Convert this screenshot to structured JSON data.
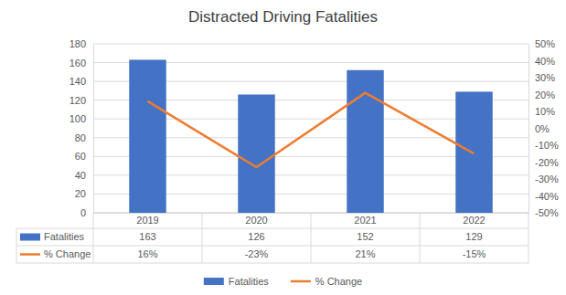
{
  "chart_data": {
    "type": "bar",
    "title": "Distracted Driving Fatalities",
    "categories": [
      "2019",
      "2020",
      "2021",
      "2022"
    ],
    "series": [
      {
        "name": "Fatalities",
        "type": "bar",
        "color": "#4472c4",
        "values": [
          163,
          126,
          152,
          129
        ]
      },
      {
        "name": "% Change",
        "type": "line",
        "axis": "y2",
        "color": "#ed7d31",
        "values": [
          16,
          -23,
          21,
          -15
        ],
        "value_labels": [
          "16%",
          "-23%",
          "21%",
          "-15%"
        ]
      }
    ],
    "ylim": [
      0,
      180
    ],
    "yticks": [
      0,
      20,
      40,
      60,
      80,
      100,
      120,
      140,
      160,
      180
    ],
    "y2lim": [
      -50,
      50
    ],
    "y2ticks": [
      {
        "value": -50,
        "label": "-50%"
      },
      {
        "value": -40,
        "label": "-40%"
      },
      {
        "value": -30,
        "label": "-30%"
      },
      {
        "value": -20,
        "label": "-20%"
      },
      {
        "value": -10,
        "label": "-10%"
      },
      {
        "value": 0,
        "label": "0%"
      },
      {
        "value": 10,
        "label": "10%"
      },
      {
        "value": 20,
        "label": "20%"
      },
      {
        "value": 30,
        "label": "30%"
      },
      {
        "value": 40,
        "label": "40%"
      },
      {
        "value": 50,
        "label": "50%"
      }
    ],
    "grid": true,
    "legend": "bottom"
  }
}
